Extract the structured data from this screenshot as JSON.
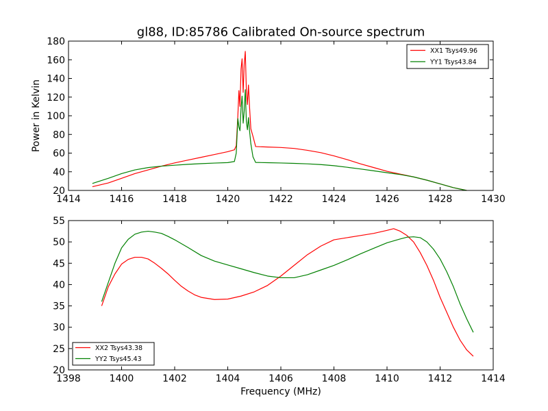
{
  "figure": {
    "background": "#ffffff",
    "xlabel": "Frequency (MHz)"
  },
  "chart_data": [
    {
      "type": "line",
      "title": "gl88, ID:85786 Calibrated On-source spectrum",
      "xlabel": "",
      "ylabel": "Power in Kelvin",
      "xlim": [
        1414,
        1430
      ],
      "ylim": [
        20,
        180
      ],
      "xticks": [
        1414,
        1416,
        1418,
        1420,
        1422,
        1424,
        1426,
        1428,
        1430
      ],
      "yticks": [
        20,
        40,
        60,
        80,
        100,
        120,
        140,
        160,
        180
      ],
      "grid": false,
      "legend_position": "top-right",
      "series": [
        {
          "name": "XX1 Tsys49.96",
          "color": "#ff0000",
          "points": [
            [
              1414.9,
              24
            ],
            [
              1415.5,
              28
            ],
            [
              1416,
              33
            ],
            [
              1416.5,
              38
            ],
            [
              1417,
              42
            ],
            [
              1417.5,
              46
            ],
            [
              1418,
              49.5
            ],
            [
              1418.5,
              52.5
            ],
            [
              1419,
              55.5
            ],
            [
              1419.5,
              58.5
            ],
            [
              1420,
              61.5
            ],
            [
              1420.25,
              63.5
            ],
            [
              1420.32,
              68
            ],
            [
              1420.38,
              100
            ],
            [
              1420.42,
              127
            ],
            [
              1420.46,
              110
            ],
            [
              1420.5,
              150
            ],
            [
              1420.54,
              161
            ],
            [
              1420.58,
              125
            ],
            [
              1420.62,
              155
            ],
            [
              1420.66,
              169
            ],
            [
              1420.7,
              128
            ],
            [
              1420.74,
              112
            ],
            [
              1420.78,
              133
            ],
            [
              1420.82,
              110
            ],
            [
              1420.87,
              86
            ],
            [
              1420.95,
              78
            ],
            [
              1421.05,
              67
            ],
            [
              1421.5,
              66.5
            ],
            [
              1422,
              66
            ],
            [
              1422.5,
              65
            ],
            [
              1423,
              63
            ],
            [
              1423.5,
              60.5
            ],
            [
              1424,
              57
            ],
            [
              1424.5,
              53
            ],
            [
              1425,
              48.5
            ],
            [
              1425.5,
              44.5
            ],
            [
              1426,
              40.5
            ],
            [
              1426.5,
              37.5
            ],
            [
              1427,
              34.5
            ],
            [
              1427.5,
              31
            ],
            [
              1428,
              27
            ],
            [
              1428.5,
              23
            ],
            [
              1429,
              20
            ]
          ]
        },
        {
          "name": "YY1 Tsys43.84",
          "color": "#008000",
          "points": [
            [
              1414.9,
              27.5
            ],
            [
              1415.5,
              33
            ],
            [
              1416,
              38
            ],
            [
              1416.5,
              42
            ],
            [
              1417,
              44.5
            ],
            [
              1417.5,
              46
            ],
            [
              1418,
              47
            ],
            [
              1418.5,
              48
            ],
            [
              1419,
              48.7
            ],
            [
              1419.5,
              49.3
            ],
            [
              1420,
              49.8
            ],
            [
              1420.25,
              51
            ],
            [
              1420.32,
              60
            ],
            [
              1420.38,
              97
            ],
            [
              1420.42,
              88
            ],
            [
              1420.46,
              84
            ],
            [
              1420.5,
              108
            ],
            [
              1420.54,
              121
            ],
            [
              1420.58,
              92
            ],
            [
              1420.62,
              105
            ],
            [
              1420.66,
              128
            ],
            [
              1420.7,
              94
            ],
            [
              1420.74,
              85
            ],
            [
              1420.78,
              98
            ],
            [
              1420.82,
              84
            ],
            [
              1420.87,
              70
            ],
            [
              1420.95,
              56
            ],
            [
              1421.05,
              50
            ],
            [
              1421.5,
              49.7
            ],
            [
              1422,
              49.4
            ],
            [
              1422.5,
              49
            ],
            [
              1423,
              48.5
            ],
            [
              1423.5,
              47.7
            ],
            [
              1424,
              46.5
            ],
            [
              1424.5,
              44.8
            ],
            [
              1425,
              43
            ],
            [
              1425.5,
              41
            ],
            [
              1426,
              39
            ],
            [
              1426.5,
              37
            ],
            [
              1427,
              34.5
            ],
            [
              1427.5,
              31
            ],
            [
              1428,
              27
            ],
            [
              1428.5,
              23
            ],
            [
              1429,
              20
            ]
          ]
        }
      ]
    },
    {
      "type": "line",
      "title": "",
      "xlabel": "Frequency (MHz)",
      "ylabel": "",
      "xlim": [
        1398,
        1414
      ],
      "ylim": [
        20,
        55
      ],
      "xticks": [
        1398,
        1400,
        1402,
        1404,
        1406,
        1408,
        1410,
        1412,
        1414
      ],
      "yticks": [
        20,
        25,
        30,
        35,
        40,
        45,
        50,
        55
      ],
      "grid": false,
      "legend_position": "bottom-left",
      "series": [
        {
          "name": "XX2 Tsys43.38",
          "color": "#ff0000",
          "points": [
            [
              1399.25,
              35
            ],
            [
              1399.5,
              39.5
            ],
            [
              1399.75,
              42.5
            ],
            [
              1400,
              44.8
            ],
            [
              1400.25,
              45.9
            ],
            [
              1400.5,
              46.4
            ],
            [
              1400.75,
              46.4
            ],
            [
              1401,
              46
            ],
            [
              1401.25,
              45
            ],
            [
              1401.5,
              43.8
            ],
            [
              1401.75,
              42.5
            ],
            [
              1402,
              41
            ],
            [
              1402.25,
              39.6
            ],
            [
              1402.5,
              38.5
            ],
            [
              1402.75,
              37.6
            ],
            [
              1403,
              37
            ],
            [
              1403.5,
              36.5
            ],
            [
              1404,
              36.6
            ],
            [
              1404.5,
              37.3
            ],
            [
              1405,
              38.3
            ],
            [
              1405.5,
              39.8
            ],
            [
              1406,
              42
            ],
            [
              1406.5,
              44.5
            ],
            [
              1407,
              47
            ],
            [
              1407.5,
              49
            ],
            [
              1408,
              50.5
            ],
            [
              1408.5,
              51
            ],
            [
              1409,
              51.5
            ],
            [
              1409.5,
              52
            ],
            [
              1410,
              52.7
            ],
            [
              1410.25,
              53.1
            ],
            [
              1410.5,
              52.5
            ],
            [
              1410.75,
              51.5
            ],
            [
              1411,
              50
            ],
            [
              1411.25,
              47.5
            ],
            [
              1411.5,
              44.5
            ],
            [
              1411.75,
              41
            ],
            [
              1412,
              37
            ],
            [
              1412.25,
              33.5
            ],
            [
              1412.5,
              30
            ],
            [
              1412.75,
              27
            ],
            [
              1413,
              24.7
            ],
            [
              1413.25,
              23.2
            ]
          ]
        },
        {
          "name": "YY2 Tsys45.43",
          "color": "#008000",
          "points": [
            [
              1399.25,
              36
            ],
            [
              1399.5,
              40.5
            ],
            [
              1399.75,
              45
            ],
            [
              1400,
              48.6
            ],
            [
              1400.25,
              50.6
            ],
            [
              1400.5,
              51.8
            ],
            [
              1400.75,
              52.3
            ],
            [
              1401,
              52.5
            ],
            [
              1401.25,
              52.3
            ],
            [
              1401.5,
              52
            ],
            [
              1401.75,
              51.3
            ],
            [
              1402,
              50.5
            ],
            [
              1402.5,
              48.7
            ],
            [
              1403,
              46.8
            ],
            [
              1403.5,
              45.5
            ],
            [
              1404,
              44.6
            ],
            [
              1404.5,
              43.7
            ],
            [
              1405,
              42.8
            ],
            [
              1405.5,
              42
            ],
            [
              1406,
              41.6
            ],
            [
              1406.5,
              41.6
            ],
            [
              1407,
              42.3
            ],
            [
              1407.5,
              43.4
            ],
            [
              1408,
              44.5
            ],
            [
              1408.5,
              45.8
            ],
            [
              1409,
              47.2
            ],
            [
              1409.5,
              48.5
            ],
            [
              1410,
              49.8
            ],
            [
              1410.5,
              50.7
            ],
            [
              1410.75,
              51.1
            ],
            [
              1411,
              51.2
            ],
            [
              1411.25,
              51
            ],
            [
              1411.5,
              50
            ],
            [
              1411.75,
              48.3
            ],
            [
              1412,
              46
            ],
            [
              1412.25,
              43
            ],
            [
              1412.5,
              39.5
            ],
            [
              1412.75,
              35.5
            ],
            [
              1413,
              32
            ],
            [
              1413.25,
              28.8
            ]
          ]
        }
      ]
    }
  ]
}
